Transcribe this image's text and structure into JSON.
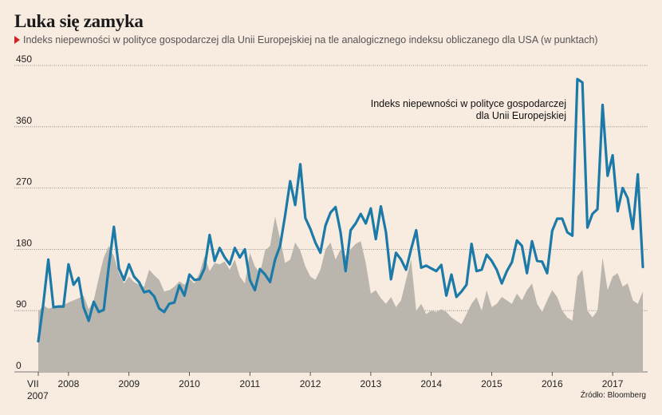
{
  "header": {
    "title": "Luka się zamyka",
    "subtitle": "Indeks niepewności w polityce gospodarczej dla Unii Europejskiej na tle analogicznego indeksu obliczanego dla USA (w punktach)"
  },
  "annotation": {
    "line1": "Indeks niepewności w polityce gospodarczej",
    "line2": "dla Unii Europejskiej"
  },
  "source": "Źródło: Bloomberg",
  "colors": {
    "eu_line": "#1b7aa8",
    "us_area": "#bab6ae",
    "background": "#f8ebdf",
    "grid": "#7a7a7a",
    "marker": "#d32121"
  },
  "chart_data": {
    "type": "line",
    "title": "Luka się zamyka",
    "ylim": [
      0,
      450
    ],
    "yticks": [
      0,
      90,
      180,
      270,
      360,
      450
    ],
    "x_start": "2007-07",
    "x_tick_labels": [
      {
        "label": "VII",
        "label2": "2007",
        "month_index": 0
      },
      {
        "label": "2008",
        "month_index": 6
      },
      {
        "label": "2009",
        "month_index": 18
      },
      {
        "label": "2010",
        "month_index": 30
      },
      {
        "label": "2011",
        "month_index": 42
      },
      {
        "label": "2012",
        "month_index": 54
      },
      {
        "label": "2013",
        "month_index": 66
      },
      {
        "label": "2014",
        "month_index": 78
      },
      {
        "label": "2015",
        "month_index": 90
      },
      {
        "label": "2016",
        "month_index": 102
      },
      {
        "label": "2017",
        "month_index": 114
      }
    ],
    "series": [
      {
        "name": "Indeks niepewności w polityce gospodarczej dla Unii Europejskiej",
        "type": "line",
        "values": [
          45,
          100,
          165,
          95,
          96,
          96,
          158,
          128,
          138,
          95,
          75,
          103,
          88,
          91,
          155,
          213,
          152,
          135,
          158,
          140,
          132,
          117,
          119,
          111,
          93,
          88,
          100,
          102,
          127,
          112,
          143,
          135,
          136,
          152,
          201,
          163,
          182,
          168,
          158,
          182,
          168,
          180,
          135,
          120,
          151,
          143,
          132,
          165,
          185,
          230,
          280,
          245,
          305,
          226,
          210,
          190,
          175,
          215,
          234,
          242,
          205,
          148,
          208,
          218,
          232,
          218,
          240,
          195,
          243,
          205,
          136,
          175,
          165,
          150,
          180,
          208,
          153,
          156,
          152,
          148,
          157,
          112,
          143,
          110,
          118,
          128,
          188,
          148,
          150,
          172,
          163,
          150,
          130,
          148,
          161,
          193,
          185,
          145,
          192,
          163,
          162,
          145,
          207,
          225,
          225,
          205,
          200,
          430,
          425,
          212,
          232,
          239,
          392,
          288,
          318,
          236,
          270,
          255,
          210,
          290,
          154
        ]
      },
      {
        "name": "USA",
        "type": "area",
        "values": [
          88,
          98,
          93,
          95,
          98,
          98,
          102,
          105,
          108,
          112,
          92,
          105,
          138,
          168,
          185,
          170,
          145,
          130,
          140,
          132,
          128,
          125,
          150,
          142,
          135,
          118,
          120,
          125,
          133,
          128,
          137,
          130,
          145,
          170,
          148,
          160,
          158,
          162,
          150,
          165,
          140,
          130,
          175,
          155,
          145,
          178,
          185,
          228,
          195,
          160,
          165,
          190,
          178,
          155,
          140,
          135,
          150,
          180,
          190,
          165,
          180,
          170,
          180,
          188,
          192,
          160,
          115,
          120,
          108,
          100,
          110,
          95,
          105,
          135,
          165,
          90,
          100,
          85,
          90,
          88,
          92,
          88,
          80,
          75,
          70,
          85,
          100,
          110,
          90,
          120,
          95,
          100,
          110,
          105,
          100,
          115,
          105,
          120,
          130,
          100,
          88,
          105,
          120,
          110,
          90,
          80,
          75,
          140,
          150,
          90,
          80,
          90,
          168,
          120,
          140,
          145,
          125,
          130,
          105,
          100,
          118
        ]
      }
    ]
  }
}
